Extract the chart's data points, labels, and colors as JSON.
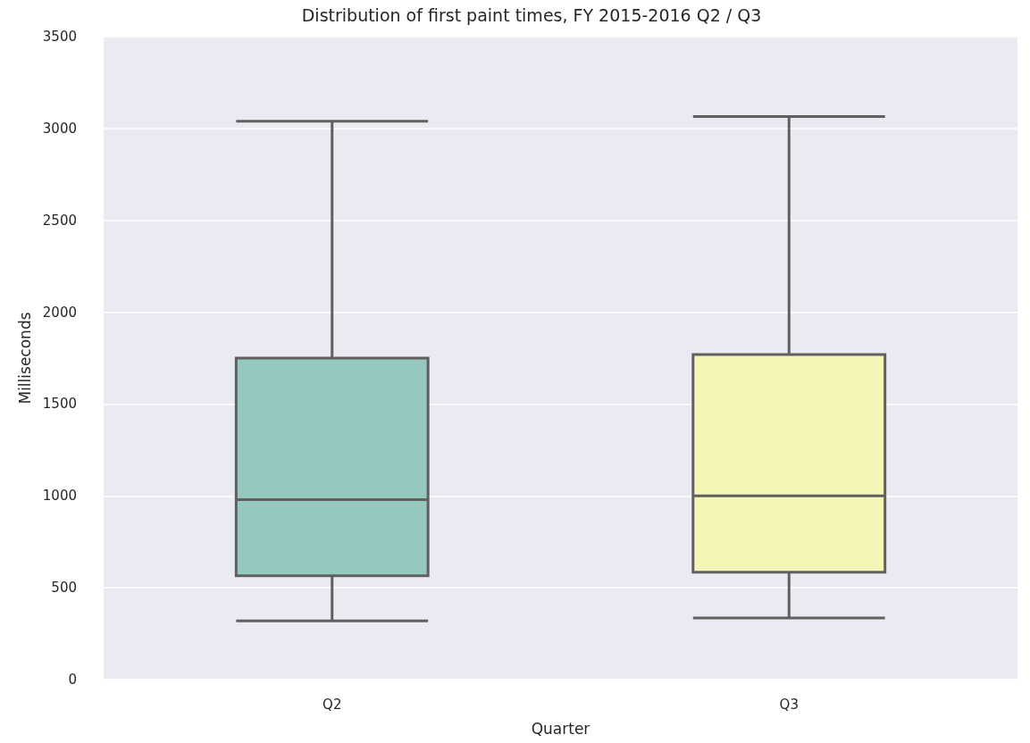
{
  "chart_data": {
    "type": "box",
    "title": "Distribution of first paint times, FY 2015-2016 Q2 / Q3",
    "xlabel": "Quarter",
    "ylabel": "Milliseconds",
    "categories": [
      "Q2",
      "Q3"
    ],
    "boxes": [
      {
        "low": 320,
        "q1": 565,
        "median": 980,
        "q3": 1750,
        "high": 3040
      },
      {
        "low": 335,
        "q1": 585,
        "median": 1000,
        "q3": 1770,
        "high": 3065
      }
    ],
    "colors": [
      "#95c9bf",
      "#f5f5b8"
    ],
    "ylim": [
      0,
      3500
    ],
    "yticks": [
      0,
      500,
      1000,
      1500,
      2000,
      2500,
      3000,
      3500
    ],
    "grid": "y"
  }
}
